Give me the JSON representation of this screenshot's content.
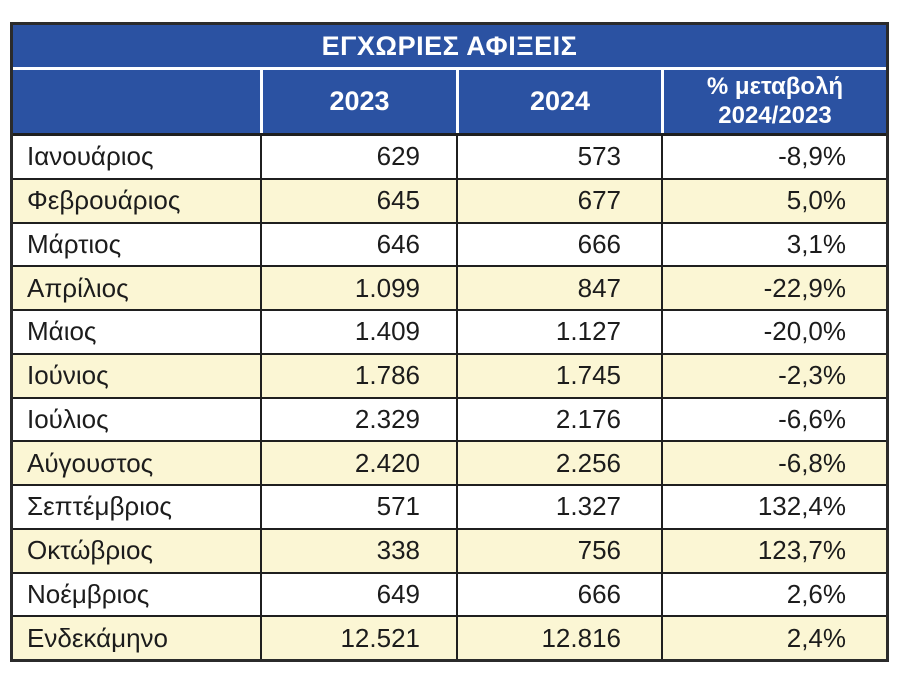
{
  "table": {
    "title": "ΕΓΧΩΡΙΕΣ ΑΦΙΞΕΙΣ",
    "col_month_header": "",
    "col_2023": "2023",
    "col_2024": "2024",
    "pct_line1": "% μεταβολή",
    "pct_line2": "2024/2023"
  },
  "colors": {
    "header_blue": "#2b52a2",
    "row_cream": "#fbf6d4",
    "row_white": "#ffffff",
    "grid_border": "#1f1f1f",
    "header_text": "#ffffff",
    "data_text": "#1c1c1c"
  },
  "chart_data": {
    "type": "table",
    "title": "ΕΓΧΩΡΙΕΣ ΑΦΙΞΕΙΣ",
    "columns": [
      "",
      "2023",
      "2024",
      "% μεταβολή 2024/2023"
    ],
    "rows": [
      [
        "Ιανουάριος",
        "629",
        "573",
        "-8,9%"
      ],
      [
        "Φεβρουάριος",
        "645",
        "677",
        "5,0%"
      ],
      [
        "Μάρτιος",
        "646",
        "666",
        "3,1%"
      ],
      [
        "Απρίλιος",
        "1.099",
        "847",
        "-22,9%"
      ],
      [
        "Μάιος",
        "1.409",
        "1.127",
        "-20,0%"
      ],
      [
        "Ιούνιος",
        "1.786",
        "1.745",
        "-2,3%"
      ],
      [
        "Ιούλιος",
        "2.329",
        "2.176",
        "-6,6%"
      ],
      [
        "Αύγουστος",
        "2.420",
        "2.256",
        "-6,8%"
      ],
      [
        "Σεπτέμβριος",
        "571",
        "1.327",
        "132,4%"
      ],
      [
        "Οκτώβριος",
        "338",
        "756",
        "123,7%"
      ],
      [
        "Νοέμβριος",
        "649",
        "666",
        "2,6%"
      ],
      [
        "Ενδεκάμηνο",
        "12.521",
        "12.816",
        "2,4%"
      ]
    ]
  }
}
